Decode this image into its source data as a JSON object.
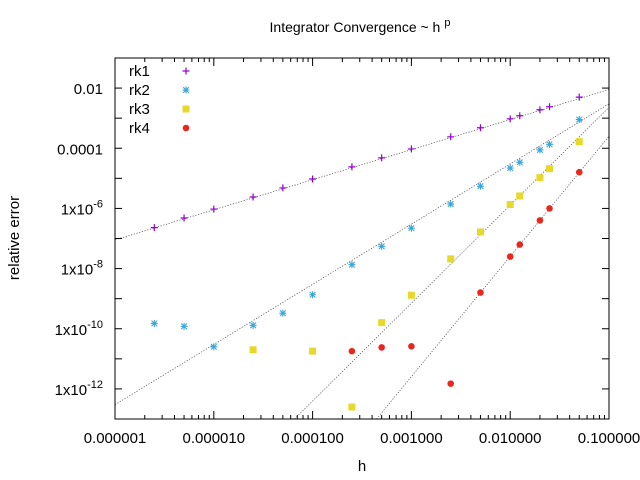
{
  "chart_data": {
    "type": "scatter",
    "title": "Integrator Convergence ~ h",
    "title_superscript": "p",
    "xlabel": "h",
    "ylabel": "relative error",
    "x_scale": "log",
    "y_scale": "log",
    "xlim": [
      1e-06,
      0.1
    ],
    "ylim": [
      1e-13,
      0.1
    ],
    "x_tick_labels": [
      "0.000001",
      "0.000010",
      "0.000100",
      "0.001000",
      "0.010000",
      "0.100000"
    ],
    "x_tick_values": [
      1e-06,
      1e-05,
      0.0001,
      0.001,
      0.01,
      0.1
    ],
    "y_tick_values": [
      0.01,
      0.0001,
      1e-06,
      1e-08,
      1e-10,
      1e-12
    ],
    "y_tick_labels": [
      {
        "base": "0.01",
        "exp": ""
      },
      {
        "base": "0.0001",
        "exp": ""
      },
      {
        "base": "1x10",
        "exp": "-6"
      },
      {
        "base": "1x10",
        "exp": "-8"
      },
      {
        "base": "1x10",
        "exp": "-10"
      },
      {
        "base": "1x10",
        "exp": "-12"
      }
    ],
    "legend_position": "top-left",
    "grid": false,
    "series": [
      {
        "name": "rk1",
        "marker": "plus",
        "color": "#9400d3",
        "x": [
          2.5e-06,
          5e-06,
          1e-05,
          2.5e-05,
          5e-05,
          0.0001,
          0.00025,
          0.0005,
          0.001,
          0.0025,
          0.005,
          0.01,
          0.0125,
          0.02,
          0.025,
          0.05
        ],
        "y": [
          2.3e-07,
          4.8e-07,
          9.5e-07,
          2.4e-06,
          4.8e-06,
          9.5e-06,
          2.4e-05,
          4.8e-05,
          9.5e-05,
          0.00024,
          0.00048,
          0.00095,
          0.0012,
          0.0019,
          0.0024,
          0.005
        ],
        "fit": {
          "xlim": [
            1e-06,
            0.1
          ],
          "ylim": [
            9e-08,
            0.009
          ]
        }
      },
      {
        "name": "rk2",
        "marker": "star",
        "color": "#3aa6d8",
        "x": [
          2.5e-06,
          5e-06,
          1e-05,
          2.5e-05,
          5e-05,
          0.0001,
          0.00025,
          0.0005,
          0.001,
          0.0025,
          0.005,
          0.01,
          0.0125,
          0.02,
          0.025,
          0.05
        ],
        "y": [
          1.5e-10,
          1.2e-10,
          2.5e-11,
          1.3e-10,
          3.3e-10,
          1.35e-09,
          1.35e-08,
          5.5e-08,
          2.2e-07,
          1.4e-06,
          5.5e-06,
          2.2e-05,
          3.4e-05,
          8.8e-05,
          0.000135,
          0.0009
        ],
        "fit": {
          "xlim": [
            1e-06,
            0.1
          ],
          "ylim": [
            3e-13,
            0.003
          ]
        }
      },
      {
        "name": "rk3",
        "marker": "square",
        "color": "#e8d82a",
        "x": [
          2.5e-05,
          0.0001,
          0.00025,
          0.0005,
          0.001,
          0.0025,
          0.005,
          0.01,
          0.0125,
          0.02,
          0.025,
          0.05
        ],
        "y": [
          2e-11,
          1.8e-11,
          2.5e-13,
          1.6e-10,
          1.3e-09,
          2.1e-08,
          1.65e-07,
          1.35e-06,
          2.6e-06,
          1.05e-05,
          2.1e-05,
          0.000165
        ],
        "fit": {
          "xlim": [
            6.56e-05,
            0.1
          ],
          "ylim": [
            1e-13,
            0.0023
          ]
        }
      },
      {
        "name": "rk4",
        "marker": "dot",
        "color": "#e8281e",
        "x": [
          0.00025,
          0.0005,
          0.001,
          0.0025,
          0.005,
          0.01,
          0.0125,
          0.02,
          0.025,
          0.05
        ],
        "y": [
          1.8e-11,
          2.4e-11,
          2.6e-11,
          1.5e-12,
          1.6e-09,
          2.5e-08,
          6.3e-08,
          4e-07,
          1e-06,
          1.6e-05
        ],
        "fit": {
          "xlim": [
            0.000444,
            0.1
          ],
          "ylim": [
            1e-13,
            0.00025
          ]
        }
      }
    ]
  }
}
